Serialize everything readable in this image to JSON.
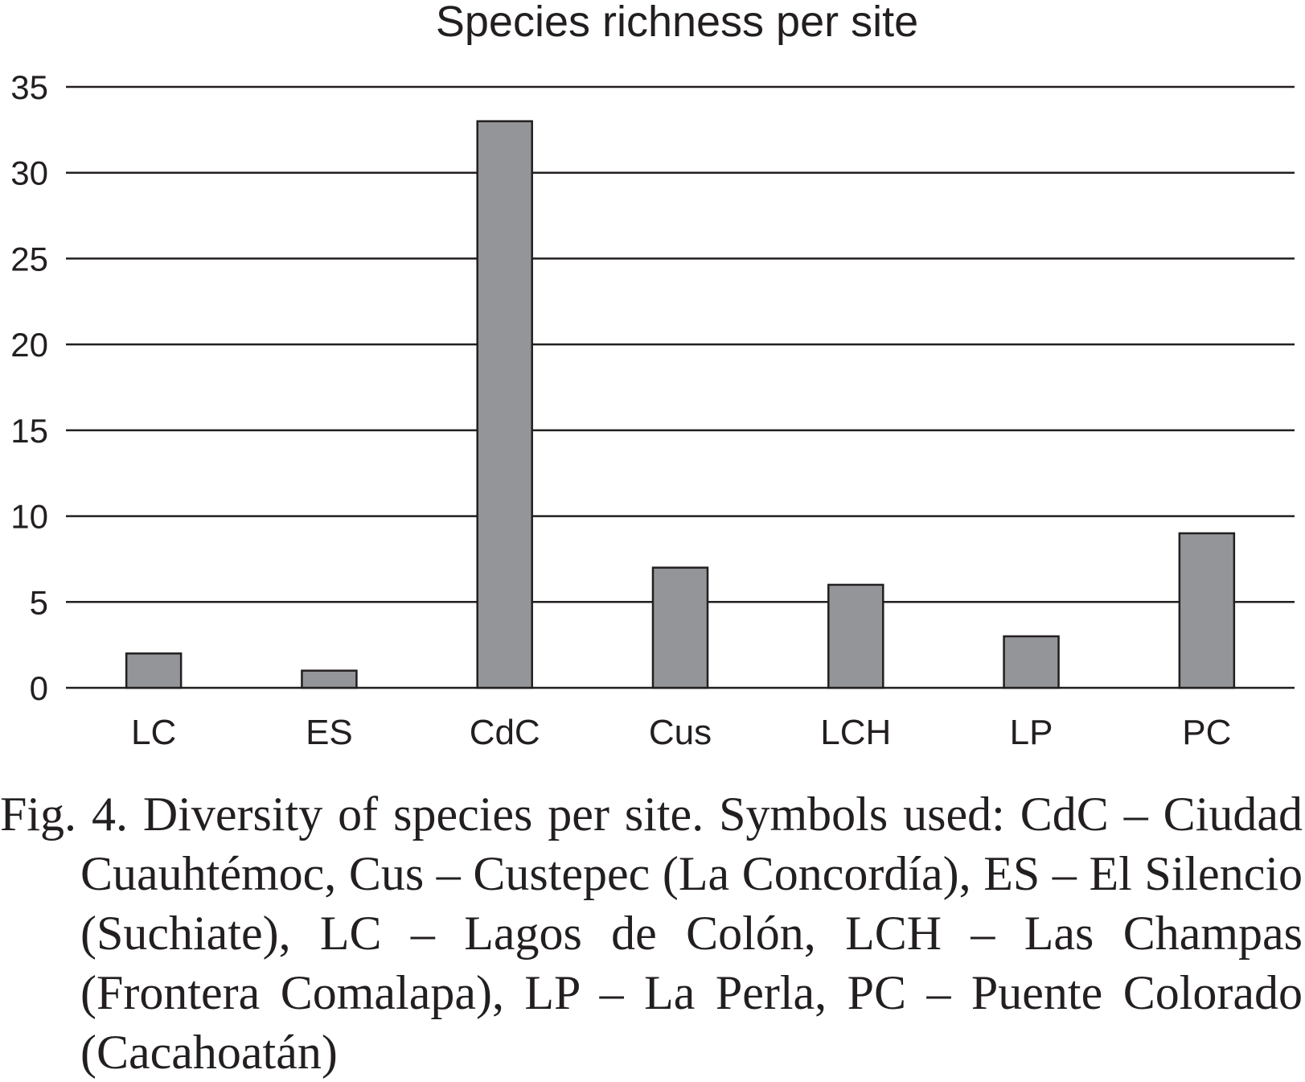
{
  "chart_data": {
    "type": "bar",
    "title": "Species richness per site",
    "xlabel": "",
    "ylabel": "",
    "categories": [
      "LC",
      "ES",
      "CdC",
      "Cus",
      "LCH",
      "LP",
      "PC"
    ],
    "values": [
      2,
      1,
      33,
      7,
      6,
      3,
      9
    ],
    "ylim": [
      0,
      35
    ],
    "yticks": [
      0,
      5,
      10,
      15,
      20,
      25,
      30,
      35
    ],
    "grid": true,
    "bar_color": "#939598",
    "line_color": "#231f20"
  },
  "caption": "Fig. 4. Diversity of species per site. Symbols used: CdC – Ciudad Cuauhtémoc, Cus – Custepec (La Concordía), ES – El Silencio (Suchiate), LC – Lagos de Colón, LCH – Las Champas (Frontera Comalapa), LP – La Perla,  PC – Puente Colorado (Cacahoatán)"
}
